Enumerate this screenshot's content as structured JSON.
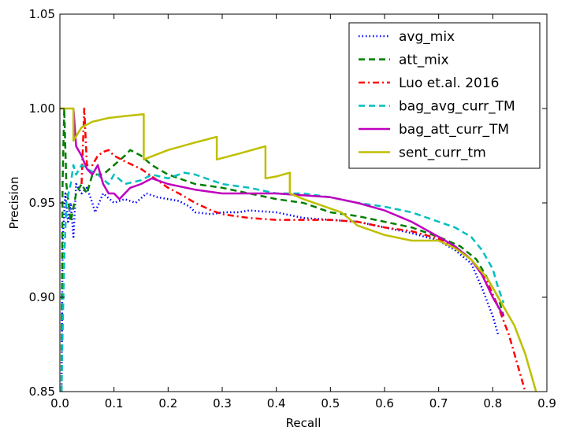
{
  "chart_data": {
    "type": "line",
    "title": "",
    "xlabel": "Recall",
    "ylabel": "Precision",
    "xlim": [
      0.0,
      0.9
    ],
    "ylim": [
      0.85,
      1.05
    ],
    "x_ticks": [
      "0.0",
      "0.1",
      "0.2",
      "0.3",
      "0.4",
      "0.5",
      "0.6",
      "0.7",
      "0.8",
      "0.9"
    ],
    "y_ticks": [
      "0.85",
      "0.90",
      "0.95",
      "1.00",
      "1.05"
    ],
    "grid": false,
    "legend_position": "top-right",
    "series": [
      {
        "name": "avg_mix",
        "color": "#0000ff",
        "style": "dotted",
        "points": [
          [
            0.003,
            0.85
          ],
          [
            0.005,
            0.93
          ],
          [
            0.01,
            0.955
          ],
          [
            0.015,
            0.94
          ],
          [
            0.02,
            0.95
          ],
          [
            0.025,
            0.932
          ],
          [
            0.03,
            0.96
          ],
          [
            0.04,
            0.955
          ],
          [
            0.05,
            0.958
          ],
          [
            0.06,
            0.95
          ],
          [
            0.065,
            0.945
          ],
          [
            0.08,
            0.955
          ],
          [
            0.1,
            0.95
          ],
          [
            0.12,
            0.952
          ],
          [
            0.14,
            0.95
          ],
          [
            0.16,
            0.955
          ],
          [
            0.18,
            0.953
          ],
          [
            0.2,
            0.952
          ],
          [
            0.22,
            0.951
          ],
          [
            0.24,
            0.948
          ],
          [
            0.25,
            0.945
          ],
          [
            0.28,
            0.944
          ],
          [
            0.3,
            0.945
          ],
          [
            0.33,
            0.945
          ],
          [
            0.35,
            0.946
          ],
          [
            0.4,
            0.945
          ],
          [
            0.45,
            0.942
          ],
          [
            0.5,
            0.941
          ],
          [
            0.55,
            0.94
          ],
          [
            0.6,
            0.937
          ],
          [
            0.65,
            0.934
          ],
          [
            0.7,
            0.93
          ],
          [
            0.73,
            0.925
          ],
          [
            0.76,
            0.918
          ],
          [
            0.78,
            0.905
          ],
          [
            0.8,
            0.89
          ],
          [
            0.81,
            0.88
          ]
        ]
      },
      {
        "name": "att_mix",
        "color": "#007f00",
        "style": "dashed",
        "points": [
          [
            0.003,
            0.85
          ],
          [
            0.005,
            0.96
          ],
          [
            0.008,
            1.0
          ],
          [
            0.012,
            0.96
          ],
          [
            0.02,
            0.94
          ],
          [
            0.03,
            0.955
          ],
          [
            0.04,
            0.96
          ],
          [
            0.05,
            0.955
          ],
          [
            0.06,
            0.965
          ],
          [
            0.08,
            0.965
          ],
          [
            0.1,
            0.97
          ],
          [
            0.12,
            0.975
          ],
          [
            0.13,
            0.978
          ],
          [
            0.15,
            0.975
          ],
          [
            0.17,
            0.97
          ],
          [
            0.2,
            0.965
          ],
          [
            0.25,
            0.96
          ],
          [
            0.3,
            0.958
          ],
          [
            0.35,
            0.955
          ],
          [
            0.4,
            0.952
          ],
          [
            0.45,
            0.95
          ],
          [
            0.5,
            0.945
          ],
          [
            0.55,
            0.943
          ],
          [
            0.6,
            0.94
          ],
          [
            0.65,
            0.937
          ],
          [
            0.7,
            0.932
          ],
          [
            0.74,
            0.927
          ],
          [
            0.77,
            0.92
          ],
          [
            0.79,
            0.91
          ],
          [
            0.81,
            0.9
          ],
          [
            0.82,
            0.89
          ]
        ]
      },
      {
        "name": "Luo et.al. 2016",
        "color": "#ff0000",
        "style": "dashdot",
        "points": [
          [
            0.04,
            0.96
          ],
          [
            0.045,
            1.0
          ],
          [
            0.05,
            0.97
          ],
          [
            0.06,
            0.97
          ],
          [
            0.07,
            0.975
          ],
          [
            0.08,
            0.977
          ],
          [
            0.09,
            0.978
          ],
          [
            0.1,
            0.975
          ],
          [
            0.12,
            0.972
          ],
          [
            0.15,
            0.968
          ],
          [
            0.18,
            0.962
          ],
          [
            0.2,
            0.958
          ],
          [
            0.22,
            0.955
          ],
          [
            0.25,
            0.95
          ],
          [
            0.28,
            0.946
          ],
          [
            0.3,
            0.944
          ],
          [
            0.35,
            0.942
          ],
          [
            0.4,
            0.941
          ],
          [
            0.45,
            0.941
          ],
          [
            0.5,
            0.941
          ],
          [
            0.55,
            0.94
          ],
          [
            0.6,
            0.937
          ],
          [
            0.65,
            0.935
          ],
          [
            0.7,
            0.931
          ],
          [
            0.73,
            0.927
          ],
          [
            0.76,
            0.92
          ],
          [
            0.79,
            0.908
          ],
          [
            0.81,
            0.895
          ],
          [
            0.83,
            0.88
          ],
          [
            0.85,
            0.86
          ],
          [
            0.86,
            0.85
          ]
        ]
      },
      {
        "name": "bag_avg_curr_TM",
        "color": "#00bfbf",
        "style": "dashed",
        "points": [
          [
            0.003,
            0.85
          ],
          [
            0.005,
            0.88
          ],
          [
            0.008,
            0.92
          ],
          [
            0.012,
            0.95
          ],
          [
            0.02,
            0.96
          ],
          [
            0.025,
            0.97
          ],
          [
            0.03,
            0.965
          ],
          [
            0.04,
            0.97
          ],
          [
            0.05,
            0.968
          ],
          [
            0.07,
            0.965
          ],
          [
            0.09,
            0.96
          ],
          [
            0.1,
            0.965
          ],
          [
            0.12,
            0.96
          ],
          [
            0.15,
            0.962
          ],
          [
            0.17,
            0.965
          ],
          [
            0.2,
            0.963
          ],
          [
            0.23,
            0.966
          ],
          [
            0.25,
            0.965
          ],
          [
            0.3,
            0.96
          ],
          [
            0.35,
            0.958
          ],
          [
            0.4,
            0.955
          ],
          [
            0.45,
            0.955
          ],
          [
            0.5,
            0.953
          ],
          [
            0.55,
            0.95
          ],
          [
            0.6,
            0.948
          ],
          [
            0.65,
            0.945
          ],
          [
            0.7,
            0.94
          ],
          [
            0.73,
            0.937
          ],
          [
            0.76,
            0.932
          ],
          [
            0.78,
            0.925
          ],
          [
            0.8,
            0.915
          ],
          [
            0.81,
            0.905
          ],
          [
            0.82,
            0.897
          ]
        ]
      },
      {
        "name": "bag_att_curr_TM",
        "color": "#bf00bf",
        "style": "solid",
        "points": [
          [
            0.025,
            1.0
          ],
          [
            0.03,
            0.98
          ],
          [
            0.04,
            0.975
          ],
          [
            0.05,
            0.968
          ],
          [
            0.06,
            0.965
          ],
          [
            0.07,
            0.97
          ],
          [
            0.08,
            0.96
          ],
          [
            0.09,
            0.955
          ],
          [
            0.1,
            0.955
          ],
          [
            0.11,
            0.952
          ],
          [
            0.13,
            0.958
          ],
          [
            0.15,
            0.96
          ],
          [
            0.17,
            0.963
          ],
          [
            0.2,
            0.96
          ],
          [
            0.25,
            0.957
          ],
          [
            0.3,
            0.955
          ],
          [
            0.35,
            0.955
          ],
          [
            0.4,
            0.955
          ],
          [
            0.45,
            0.954
          ],
          [
            0.5,
            0.953
          ],
          [
            0.55,
            0.95
          ],
          [
            0.6,
            0.946
          ],
          [
            0.65,
            0.94
          ],
          [
            0.7,
            0.932
          ],
          [
            0.73,
            0.927
          ],
          [
            0.76,
            0.92
          ],
          [
            0.78,
            0.912
          ],
          [
            0.8,
            0.9
          ],
          [
            0.81,
            0.895
          ],
          [
            0.82,
            0.89
          ]
        ]
      },
      {
        "name": "sent_curr_tm",
        "color": "#bfbf00",
        "style": "solid",
        "points": [
          [
            0.0,
            1.0
          ],
          [
            0.025,
            1.0
          ],
          [
            0.025,
            0.983
          ],
          [
            0.04,
            0.99
          ],
          [
            0.06,
            0.993
          ],
          [
            0.09,
            0.995
          ],
          [
            0.12,
            0.996
          ],
          [
            0.155,
            0.997
          ],
          [
            0.155,
            0.973
          ],
          [
            0.2,
            0.978
          ],
          [
            0.25,
            0.982
          ],
          [
            0.29,
            0.985
          ],
          [
            0.29,
            0.973
          ],
          [
            0.33,
            0.976
          ],
          [
            0.38,
            0.98
          ],
          [
            0.38,
            0.963
          ],
          [
            0.4,
            0.964
          ],
          [
            0.425,
            0.966
          ],
          [
            0.425,
            0.955
          ],
          [
            0.45,
            0.952
          ],
          [
            0.5,
            0.947
          ],
          [
            0.52,
            0.945
          ],
          [
            0.55,
            0.938
          ],
          [
            0.6,
            0.933
          ],
          [
            0.65,
            0.93
          ],
          [
            0.7,
            0.93
          ],
          [
            0.73,
            0.926
          ],
          [
            0.76,
            0.92
          ],
          [
            0.79,
            0.91
          ],
          [
            0.82,
            0.895
          ],
          [
            0.84,
            0.885
          ],
          [
            0.86,
            0.87
          ],
          [
            0.88,
            0.85
          ]
        ]
      }
    ]
  }
}
